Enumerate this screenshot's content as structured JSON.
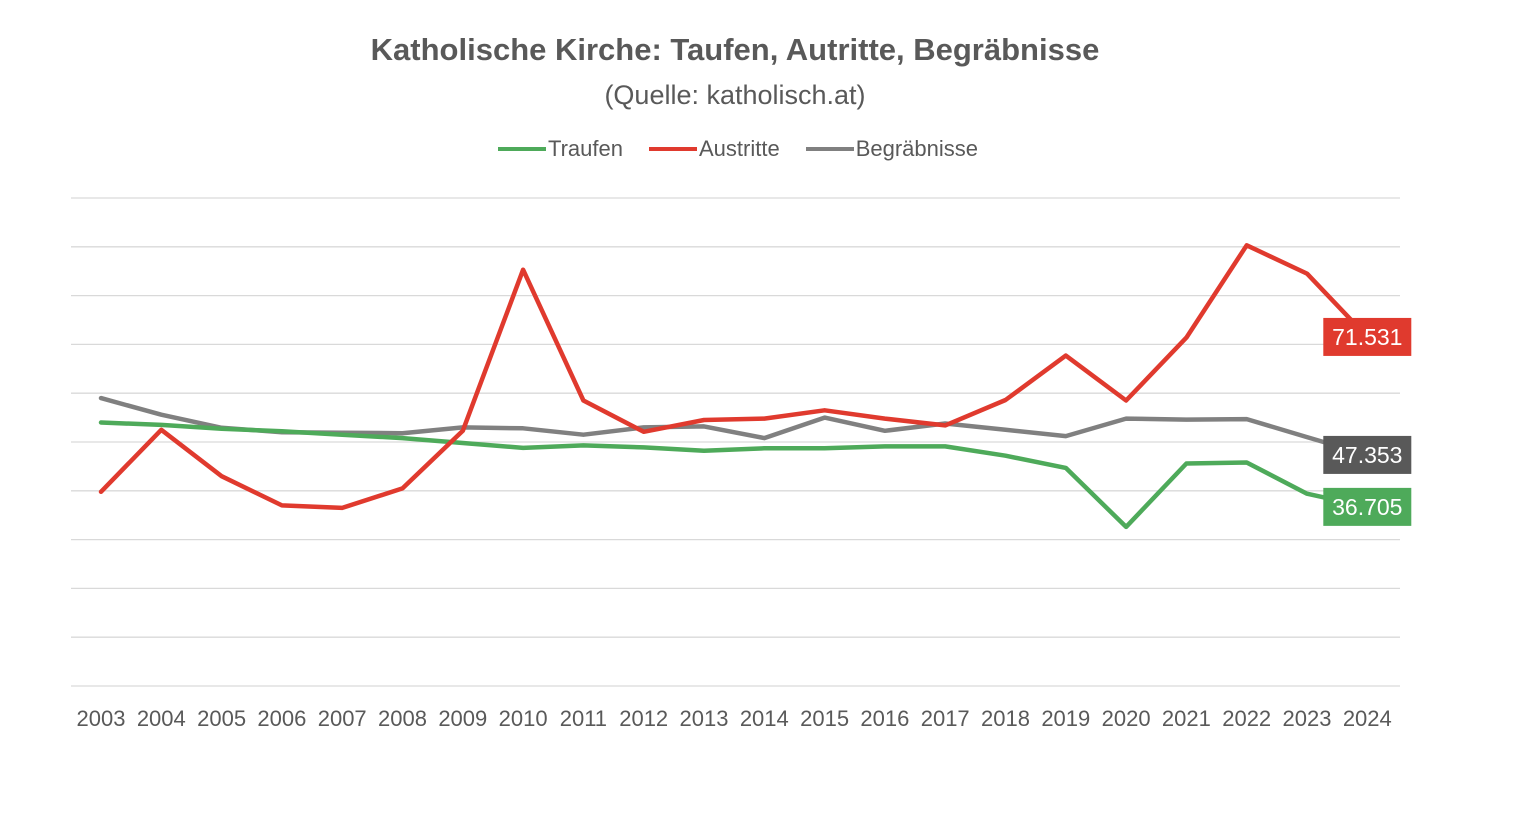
{
  "chart_data": {
    "type": "line",
    "title": "Katholische Kirche: Taufen, Autritte, Begräbnisse",
    "subtitle": "(Quelle: katholisch.at)",
    "xlabel": "",
    "ylabel": "",
    "grid": true,
    "legend_position": "top",
    "ylim": [
      0,
      100000
    ],
    "x": [
      "2003",
      "2004",
      "2005",
      "2006",
      "2007",
      "2008",
      "2009",
      "2010",
      "2011",
      "2012",
      "2013",
      "2014",
      "2015",
      "2016",
      "2017",
      "2018",
      "2019",
      "2020",
      "2021",
      "2022",
      "2023",
      "2024"
    ],
    "series": [
      {
        "name": "Traufen",
        "color": "#4eaa5a",
        "values": [
          54000,
          53500,
          52700,
          52200,
          51500,
          50800,
          49800,
          48800,
          49300,
          48900,
          48200,
          48700,
          48700,
          49100,
          49100,
          47200,
          44700,
          32600,
          45600,
          45800,
          39400,
          36705
        ],
        "end_label": "36.705"
      },
      {
        "name": "Austritte",
        "color": "#e03a2e",
        "values": [
          39800,
          52500,
          43000,
          37000,
          36500,
          40500,
          52300,
          85300,
          58500,
          52100,
          54500,
          54800,
          56500,
          54800,
          53400,
          58600,
          67700,
          58500,
          71400,
          90300,
          84500,
          71531
        ],
        "end_label": "71.531"
      },
      {
        "name": "Begräbnisse",
        "color": "#808080",
        "values": [
          59000,
          55600,
          52900,
          52000,
          51900,
          51800,
          53000,
          52800,
          51500,
          53000,
          53200,
          50800,
          55000,
          52300,
          53800,
          52500,
          51200,
          54800,
          54600,
          54700,
          51000,
          47353
        ],
        "end_label": "47.353"
      }
    ]
  }
}
